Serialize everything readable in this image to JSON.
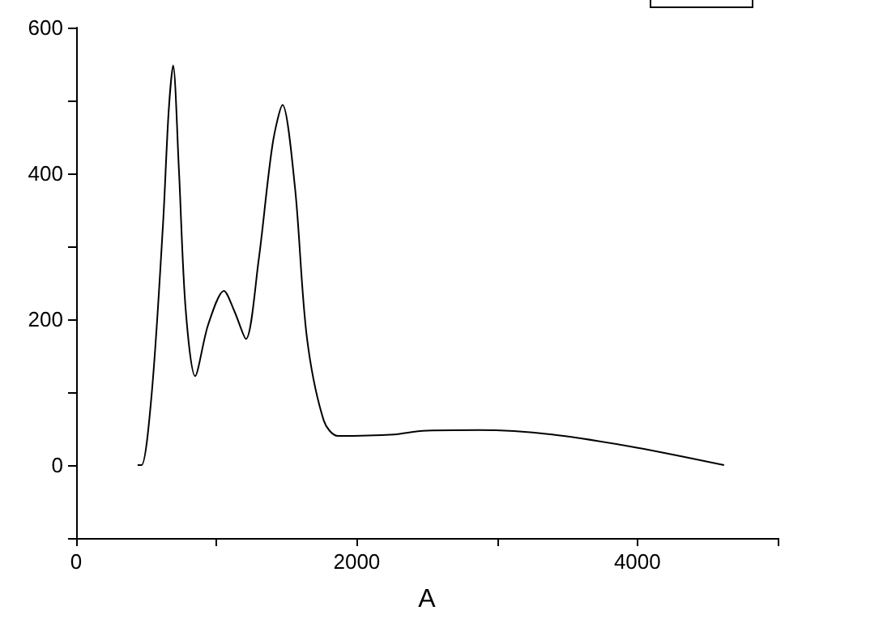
{
  "chart_data": {
    "type": "line",
    "xlabel": "A",
    "x": [
      438,
      466,
      539,
      619,
      659,
      691,
      732,
      780,
      848,
      940,
      1053,
      1130,
      1210,
      1300,
      1400,
      1471,
      1560,
      1644,
      1765,
      1865,
      2267,
      2468,
      2870,
      3392,
      3995,
      4618
    ],
    "series": [
      {
        "color": "#000000",
        "values": [
          0,
          0,
          99,
          330,
          484,
          548,
          407,
          215,
          122,
          192,
          239,
          210,
          173,
          280,
          440,
          494,
          380,
          176,
          61,
          40,
          42,
          47,
          48,
          42,
          24,
          0
        ]
      }
    ],
    "xlim": [
      0,
      5000
    ],
    "xticks": [
      0,
      {
        "value": 1000,
        "label": null
      },
      2000,
      {
        "value": 3000,
        "label": null
      },
      4000,
      {
        "value": 5000,
        "label": null
      }
    ],
    "ylim": [
      -100,
      600
    ],
    "yticks": [
      {
        "value": -100,
        "label": null
      },
      0,
      {
        "value": 100,
        "label": null
      },
      200,
      {
        "value": 300,
        "label": null
      },
      400,
      {
        "value": 500,
        "label": null
      },
      600
    ],
    "grid": false,
    "marker": "none",
    "line_style": "solid"
  }
}
